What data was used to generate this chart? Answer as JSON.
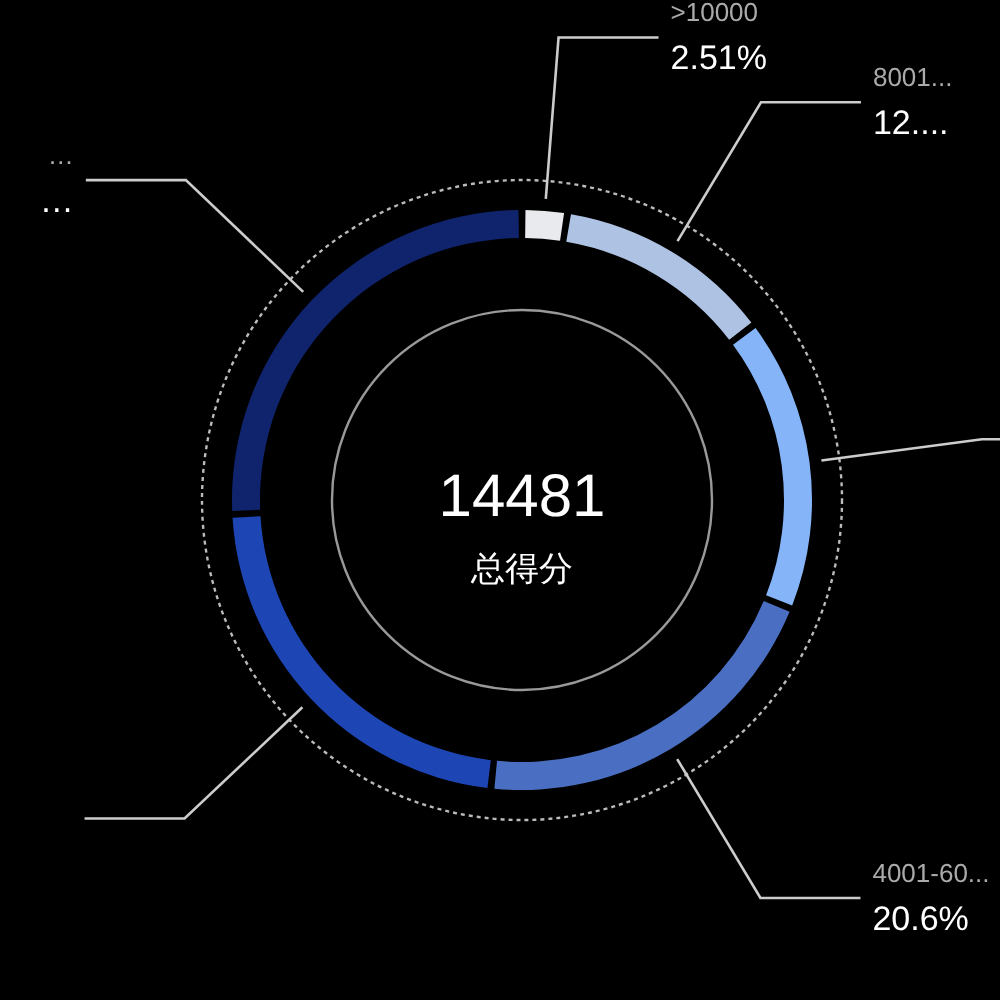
{
  "chart_data": {
    "type": "donut",
    "title": "14481",
    "subtitle": "总得分",
    "categories": [
      ">10000",
      "8001...",
      null,
      "4001-60...",
      null,
      "…"
    ],
    "values": [
      2.51,
      12.2,
      16.4,
      20.6,
      22.5,
      25.79
    ],
    "colors": [
      "#e8eaee",
      "#aec3e3",
      "#85b5f8",
      "#4a6fc2",
      "#1e45b4",
      "#10246e"
    ],
    "value_labels": [
      "2.51%",
      "12....",
      null,
      "20.6%",
      null,
      "…"
    ]
  }
}
